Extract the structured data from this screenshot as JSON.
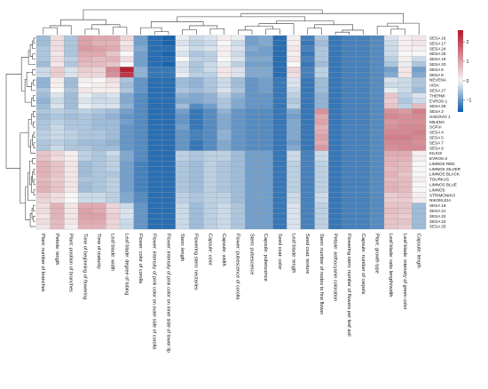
{
  "chart_data": {
    "type": "heatmap",
    "title": "",
    "colorbar": {
      "ticks": [
        2,
        1,
        0,
        -1
      ],
      "colors": {
        "low": "#0b5aa8",
        "mid": "#f7f7f7",
        "high": "#b2182b"
      },
      "range": [
        -1.6,
        2.6
      ]
    },
    "row_dendrogram": true,
    "column_dendrogram": true,
    "columns": [
      "Plant: number of branches",
      "Petiole: length",
      "Plant: position of branches",
      "Time of beginning of flowering",
      "Time of maturity",
      "Leaf blade: width",
      "Leaf blade: degree of lobing",
      "Flower: color of corolla",
      "Flower: intensity of pink color on outer side of corolla",
      "Flower: intensity of pink color on inner side of lower lip",
      "Stem: length",
      "Flowering stem: nectaries",
      "Capsule: color",
      "Capsule: width",
      "Flower: pubescence of corolla",
      "Stem: pubescence",
      "Capsule: pubescence",
      "Seed coat: color",
      "Leaf blade: length",
      "Seed coat: texture",
      "Stem: number of nodes to first flower",
      "Petiole: anthocyanin coloration",
      "Flowering stem: number of flowers per leaf axil",
      "Capsule: number of carpels",
      "Plant: growth type",
      "Leaf blade: ratio length/width",
      "Leaf blade: intensity of green color",
      "Capsule: length"
    ],
    "rows": [
      "SESA 16",
      "SESA 17",
      "SESA 24",
      "SESA 26",
      "SESA 19",
      "SESA 20",
      "SESA 6",
      "SESA 8",
      "NEVENA",
      "AIDA",
      "SESA 27",
      "THERMI",
      "EVROS-1",
      "SESA 28",
      "SESA 2",
      "SADOVO 1",
      "MILENA",
      "SOFIA",
      "SESA 4",
      "SESA 5",
      "SESA 7",
      "SESA 9",
      "KILKIS",
      "EVROS-2",
      "LIMNOS RED",
      "LIMNOS SILVER",
      "LIMNOS BLACK",
      "TOURKAS",
      "LIMNOS BLUE",
      "LIMNOS",
      "STRIMONIKO",
      "NIKOKLEIA",
      "SESA 18",
      "SESA 21",
      "SESA 22",
      "SESA 23",
      "SESA 25"
    ],
    "values": [
      [
        -0.6,
        0.3,
        -0.5,
        1.0,
        0.9,
        0.9,
        0.4,
        -0.9,
        -1.4,
        -1.5,
        -0.1,
        -0.3,
        -0.2,
        0.1,
        -0.1,
        -0.9,
        -0.8,
        -1.4,
        0.1,
        -1.2,
        -0.5,
        -1.3,
        -1.2,
        -1.2,
        -1.1,
        -0.2,
        0.1,
        0.2
      ],
      [
        -0.6,
        0.3,
        -0.5,
        1.0,
        0.8,
        0.8,
        0.2,
        -0.9,
        -1.4,
        -1.5,
        -0.2,
        -0.4,
        -0.3,
        0.0,
        -0.3,
        -0.9,
        -0.8,
        -1.4,
        0.1,
        -1.3,
        -0.6,
        -1.3,
        -1.2,
        -1.2,
        -1.1,
        -0.3,
        0.1,
        0.2
      ],
      [
        -0.5,
        0.3,
        -0.5,
        1.1,
        1.0,
        0.9,
        0.3,
        -0.8,
        -1.4,
        -1.4,
        -0.1,
        -0.3,
        -0.2,
        0.1,
        -0.2,
        -0.8,
        -0.9,
        -1.4,
        0.2,
        -1.2,
        -0.5,
        -1.3,
        -1.2,
        -1.2,
        -1.1,
        -0.3,
        0.1,
        0.1
      ],
      [
        -0.5,
        0.2,
        -0.5,
        0.9,
        0.9,
        0.6,
        0.0,
        -0.9,
        -1.4,
        -1.5,
        -0.2,
        -0.5,
        -0.4,
        0.1,
        -0.3,
        -0.9,
        -0.9,
        -1.4,
        0.1,
        -1.3,
        -0.5,
        -1.3,
        -1.2,
        -1.2,
        -1.1,
        -0.3,
        0.0,
        0.0
      ],
      [
        -0.5,
        0.3,
        -0.4,
        0.8,
        0.7,
        0.8,
        0.3,
        -0.9,
        -1.4,
        -1.4,
        0.0,
        -0.4,
        -0.4,
        0.0,
        -0.2,
        -0.8,
        -0.8,
        -1.4,
        0.2,
        -1.2,
        -0.5,
        -1.3,
        -1.2,
        -1.2,
        -1.1,
        -0.4,
        0.1,
        -0.3
      ],
      [
        -0.6,
        0.2,
        -0.5,
        0.7,
        0.7,
        0.6,
        0.0,
        -0.9,
        -1.4,
        -1.5,
        -0.2,
        -0.5,
        -0.3,
        -0.1,
        -0.4,
        -0.9,
        -0.9,
        -1.4,
        0.0,
        -1.3,
        -0.6,
        -1.3,
        -1.2,
        -1.2,
        -1.1,
        -0.5,
        -0.1,
        -0.5
      ],
      [
        -0.3,
        0.5,
        -0.2,
        0.5,
        0.4,
        1.3,
        2.5,
        -0.7,
        -1.3,
        -1.3,
        -0.2,
        -0.5,
        -0.3,
        0.2,
        -0.2,
        -0.8,
        -0.8,
        -1.4,
        0.4,
        -1.2,
        -0.4,
        -1.3,
        -1.2,
        -1.2,
        -1.1,
        -0.9,
        0.2,
        -0.9
      ],
      [
        -0.3,
        0.5,
        -0.2,
        0.4,
        0.4,
        1.2,
        2.2,
        -0.7,
        -1.3,
        -1.3,
        -0.1,
        -0.4,
        -0.4,
        0.2,
        -0.2,
        -0.8,
        -0.8,
        -1.4,
        0.3,
        -1.2,
        -0.4,
        -1.3,
        -1.2,
        -1.2,
        -1.1,
        -0.8,
        0.2,
        -0.8
      ],
      [
        -0.7,
        0.1,
        -0.6,
        0.1,
        0.0,
        0.3,
        -0.5,
        -1.0,
        -1.4,
        -1.4,
        -0.6,
        -0.7,
        -0.5,
        -0.3,
        -0.6,
        -1.0,
        -0.9,
        -1.3,
        -0.2,
        -1.3,
        -0.6,
        -1.3,
        -1.2,
        -1.2,
        -1.1,
        -0.2,
        -0.3,
        -0.5
      ],
      [
        -0.7,
        0.1,
        -0.6,
        0.0,
        0.1,
        0.2,
        -0.6,
        -1.0,
        -1.4,
        -1.4,
        -0.6,
        -0.7,
        -0.5,
        -0.3,
        -0.6,
        -1.0,
        -0.9,
        -1.3,
        -0.2,
        -1.3,
        -0.6,
        -1.3,
        -1.2,
        -1.2,
        -1.1,
        -0.3,
        -0.3,
        -0.5
      ],
      [
        -0.5,
        0.0,
        -0.5,
        0.2,
        0.1,
        0.1,
        -0.5,
        -1.0,
        -1.4,
        -1.4,
        -0.5,
        -0.6,
        -0.5,
        -0.2,
        -0.5,
        -1.0,
        -0.9,
        -1.3,
        -0.3,
        -1.3,
        -0.6,
        -1.3,
        -1.2,
        -1.2,
        -1.1,
        -0.1,
        -0.3,
        -0.6
      ],
      [
        -0.6,
        -0.2,
        -0.6,
        -0.1,
        -0.3,
        -0.2,
        -0.8,
        -1.1,
        -1.4,
        -1.4,
        -0.7,
        -0.8,
        -0.7,
        -0.4,
        -0.7,
        -1.0,
        -1.0,
        -1.3,
        -0.4,
        -1.3,
        -0.7,
        -1.3,
        -1.2,
        -1.2,
        -1.1,
        0.6,
        -0.4,
        -0.2
      ],
      [
        -0.7,
        -0.3,
        -0.6,
        -0.2,
        -0.3,
        -0.3,
        -0.8,
        -1.1,
        -1.4,
        -1.4,
        -0.8,
        -0.8,
        -0.7,
        -0.5,
        -0.8,
        -1.0,
        -1.0,
        -1.3,
        -0.5,
        -1.3,
        -0.7,
        -1.3,
        -1.2,
        -1.2,
        -1.1,
        0.5,
        -0.5,
        -0.3
      ],
      [
        -0.6,
        -0.2,
        -0.6,
        -0.1,
        -0.2,
        -0.2,
        -0.7,
        -1.1,
        -1.4,
        -1.4,
        -0.6,
        -1.1,
        -0.9,
        -0.5,
        -0.8,
        -1.0,
        -1.0,
        -1.3,
        -0.4,
        -1.3,
        -0.7,
        -1.3,
        -1.2,
        -1.2,
        -1.1,
        0.6,
        -0.4,
        0.7
      ],
      [
        -0.5,
        -0.4,
        -0.5,
        -0.4,
        -0.5,
        -0.6,
        -0.9,
        -1.1,
        -1.4,
        -1.4,
        -0.9,
        -1.3,
        -1.1,
        -0.7,
        -1.0,
        -1.1,
        -1.1,
        -1.3,
        -0.8,
        -1.3,
        1.2,
        -1.3,
        -1.2,
        -1.2,
        -1.1,
        1.2,
        1.1,
        1.4
      ],
      [
        -0.6,
        -0.5,
        -0.6,
        -0.5,
        -0.6,
        -0.7,
        -1.0,
        -1.1,
        -1.4,
        -1.4,
        -1.0,
        -1.3,
        -1.1,
        -0.8,
        -1.0,
        -1.1,
        -1.1,
        -1.3,
        -0.9,
        -1.3,
        0.9,
        -1.3,
        -1.2,
        -1.2,
        -1.1,
        1.3,
        1.2,
        1.3
      ],
      [
        -0.5,
        -0.4,
        -0.5,
        -0.5,
        -0.6,
        -0.6,
        -0.9,
        -1.1,
        -1.4,
        -1.4,
        -1.0,
        -1.3,
        -1.1,
        -0.8,
        -1.0,
        -1.1,
        -1.1,
        -1.3,
        -0.8,
        -1.3,
        1.0,
        -1.3,
        -1.2,
        -1.2,
        -1.1,
        1.1,
        1.2,
        1.2
      ],
      [
        -0.5,
        -0.3,
        -0.5,
        -0.5,
        -0.6,
        -0.6,
        -1.0,
        -1.1,
        -1.4,
        -1.4,
        -0.9,
        -1.3,
        -1.1,
        -0.8,
        -1.0,
        -1.1,
        -1.1,
        -1.3,
        -0.8,
        -1.3,
        0.8,
        -1.3,
        -1.2,
        -1.2,
        -1.1,
        1.2,
        1.3,
        1.3
      ],
      [
        -0.4,
        -0.3,
        -0.4,
        -0.5,
        -0.5,
        -0.6,
        -1.0,
        -1.1,
        -1.4,
        -1.4,
        -1.0,
        -1.2,
        -1.1,
        -0.7,
        -1.0,
        -1.1,
        -1.1,
        -1.3,
        -0.8,
        -1.3,
        0.9,
        -1.3,
        -1.2,
        -1.2,
        -1.1,
        1.3,
        1.3,
        1.4
      ],
      [
        -0.4,
        -0.3,
        -0.4,
        -0.5,
        -0.5,
        -0.6,
        -1.0,
        -1.1,
        -1.4,
        -1.4,
        -1.0,
        -1.2,
        -1.1,
        -0.7,
        -1.0,
        -1.1,
        -1.1,
        -1.3,
        -0.8,
        -1.3,
        1.0,
        -1.3,
        -1.2,
        -1.2,
        -1.1,
        1.4,
        1.4,
        1.3
      ],
      [
        -0.5,
        -0.4,
        -0.5,
        -0.6,
        -0.6,
        -0.7,
        -1.0,
        -1.1,
        -1.4,
        -1.4,
        -1.0,
        -1.3,
        -1.1,
        -0.8,
        -1.0,
        -1.1,
        -1.1,
        -1.3,
        -0.9,
        -1.3,
        0.9,
        -1.3,
        -1.2,
        -1.2,
        -1.1,
        1.3,
        1.3,
        1.2
      ],
      [
        -0.5,
        -0.3,
        -0.5,
        -0.5,
        -0.6,
        -0.6,
        -1.0,
        -1.1,
        -1.4,
        -1.4,
        -1.0,
        -1.3,
        -1.1,
        -0.8,
        -1.0,
        -1.1,
        -1.1,
        -1.3,
        -0.8,
        -1.3,
        1.1,
        -1.3,
        -1.2,
        -1.2,
        -1.1,
        1.2,
        1.3,
        1.3
      ],
      [
        0.6,
        0.4,
        0.1,
        -0.4,
        -0.5,
        -0.3,
        -0.8,
        -1.1,
        -1.4,
        -1.4,
        -0.4,
        -0.5,
        -0.4,
        -0.4,
        -0.6,
        -0.9,
        -0.9,
        -1.3,
        -0.3,
        -1.2,
        -0.3,
        -1.3,
        -1.2,
        -1.2,
        -1.1,
        0.9,
        0.9,
        0.1
      ],
      [
        0.6,
        0.3,
        0.1,
        -0.4,
        -0.5,
        -0.4,
        -0.8,
        -1.1,
        -1.4,
        -1.4,
        -0.4,
        -0.5,
        -0.4,
        -0.4,
        -0.6,
        -0.9,
        -0.9,
        -1.3,
        -0.3,
        -1.2,
        -0.3,
        -1.3,
        -1.2,
        -1.2,
        -1.1,
        0.8,
        0.8,
        0.1
      ],
      [
        0.8,
        0.6,
        0.2,
        -0.6,
        -0.5,
        -0.4,
        -0.9,
        -1.2,
        -1.4,
        -1.4,
        -0.5,
        -0.6,
        -0.4,
        -0.5,
        -0.6,
        -0.9,
        -0.9,
        -1.3,
        -0.4,
        -1.2,
        -0.4,
        -1.3,
        -1.2,
        -1.2,
        -1.1,
        0.8,
        0.7,
        0.0
      ],
      [
        0.8,
        0.6,
        0.2,
        -0.6,
        -0.5,
        -0.4,
        -0.9,
        -1.2,
        -1.4,
        -1.4,
        -0.5,
        -0.6,
        -0.4,
        -0.5,
        -0.6,
        -0.9,
        -0.9,
        -1.3,
        -0.4,
        -1.2,
        -0.4,
        -1.3,
        -1.2,
        -1.2,
        -1.1,
        0.7,
        0.7,
        0.0
      ],
      [
        0.8,
        0.6,
        0.2,
        -0.6,
        -0.5,
        -0.5,
        -0.9,
        -1.2,
        -1.4,
        -1.4,
        -0.5,
        -0.6,
        -0.4,
        -0.5,
        -0.6,
        -0.9,
        -0.9,
        -1.3,
        -0.4,
        -1.2,
        -0.4,
        -1.3,
        -1.2,
        -1.2,
        -1.1,
        0.8,
        0.6,
        0.0
      ],
      [
        0.7,
        0.5,
        0.2,
        -0.5,
        -0.5,
        -0.4,
        -0.9,
        -1.2,
        -1.4,
        -1.4,
        -0.5,
        -0.6,
        -0.4,
        -0.5,
        -0.6,
        -0.9,
        -0.9,
        -1.3,
        -0.4,
        -1.2,
        -0.4,
        -1.3,
        -1.2,
        -1.2,
        -1.1,
        0.7,
        0.7,
        0.1
      ],
      [
        0.8,
        0.6,
        0.2,
        -0.6,
        -0.5,
        -0.4,
        -0.9,
        -1.2,
        -1.4,
        -1.4,
        -0.5,
        -0.6,
        -0.4,
        -0.5,
        -0.6,
        -0.9,
        -0.9,
        -1.3,
        -0.4,
        -1.2,
        -0.4,
        -1.3,
        -1.2,
        -1.2,
        -1.1,
        0.8,
        0.7,
        0.0
      ],
      [
        0.8,
        0.6,
        0.2,
        -0.6,
        -0.5,
        -0.4,
        -0.9,
        -1.2,
        -1.4,
        -1.4,
        -0.5,
        -0.6,
        -0.4,
        -0.5,
        -0.6,
        -0.9,
        -0.9,
        -1.3,
        -0.4,
        -1.2,
        -0.4,
        -1.3,
        -1.2,
        -1.2,
        -1.1,
        0.8,
        0.7,
        0.0
      ],
      [
        0.5,
        0.3,
        0.0,
        -0.3,
        -0.3,
        -0.4,
        -0.8,
        -1.1,
        -1.4,
        -1.4,
        -0.4,
        -0.5,
        -0.4,
        -0.4,
        -0.6,
        -0.9,
        -0.9,
        -1.3,
        -0.3,
        -1.2,
        -0.3,
        -1.3,
        -1.2,
        -1.2,
        -1.1,
        0.5,
        0.6,
        0.1
      ],
      [
        0.4,
        0.3,
        0.0,
        -0.3,
        -0.3,
        -0.4,
        -0.8,
        -1.1,
        -1.4,
        -1.4,
        -0.4,
        -0.5,
        -0.4,
        -0.4,
        -0.6,
        -0.9,
        -0.9,
        -1.3,
        -0.3,
        -1.2,
        -0.3,
        -1.3,
        -1.2,
        -1.2,
        -1.1,
        0.5,
        0.5,
        0.1
      ],
      [
        0.3,
        0.8,
        0.2,
        0.9,
        0.9,
        0.4,
        -0.3,
        -1.0,
        -1.4,
        -1.4,
        -0.3,
        -0.6,
        -0.4,
        -0.3,
        -0.5,
        -0.9,
        -0.9,
        -1.3,
        -0.2,
        -1.2,
        -0.4,
        -1.3,
        -1.2,
        -1.2,
        -1.1,
        0.6,
        0.6,
        -0.6
      ],
      [
        0.3,
        0.8,
        0.2,
        1.0,
        0.9,
        0.4,
        -0.2,
        -1.0,
        -1.4,
        -1.4,
        -0.3,
        -0.6,
        -0.4,
        -0.3,
        -0.5,
        -0.9,
        -0.9,
        -1.3,
        -0.2,
        -1.2,
        -0.4,
        -1.3,
        -1.2,
        -1.2,
        -1.1,
        0.7,
        0.6,
        -0.6
      ],
      [
        0.2,
        0.8,
        0.2,
        1.0,
        1.0,
        0.5,
        -0.2,
        -1.0,
        -1.4,
        -1.4,
        -0.3,
        -0.6,
        -0.4,
        -0.3,
        -0.5,
        -0.9,
        -0.9,
        -1.3,
        -0.2,
        -1.2,
        -0.4,
        -1.3,
        -1.2,
        -1.2,
        -1.1,
        0.6,
        0.5,
        -0.6
      ],
      [
        0.3,
        0.7,
        0.2,
        0.9,
        0.9,
        0.4,
        -0.3,
        -1.0,
        -1.4,
        -1.4,
        -0.3,
        -0.6,
        -0.4,
        -0.3,
        -0.5,
        -0.9,
        -0.9,
        -1.3,
        -0.2,
        -1.2,
        -0.4,
        -1.3,
        -1.2,
        -1.2,
        -1.1,
        0.6,
        0.6,
        -0.6
      ],
      [
        0.2,
        0.7,
        0.1,
        0.8,
        0.8,
        0.4,
        -0.3,
        -1.0,
        -1.4,
        -1.4,
        -0.3,
        -0.6,
        -0.4,
        -0.3,
        -0.5,
        -0.9,
        -0.9,
        -1.3,
        -0.2,
        -1.2,
        -0.4,
        -1.3,
        -1.2,
        -1.2,
        -1.1,
        0.6,
        0.5,
        -0.6
      ]
    ]
  }
}
